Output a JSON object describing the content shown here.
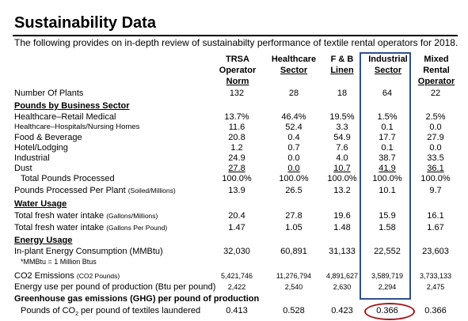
{
  "title": "Sustainability Data",
  "subtitle": "The following provides on in-depth review of sustainabilty performance of textile rental operators for 2018.",
  "columns": [
    {
      "l1": "TRSA",
      "l2": "Operator",
      "l3": "Norm"
    },
    {
      "l1": "",
      "l2": "Healthcare",
      "l3": "Sector"
    },
    {
      "l1": "",
      "l2": "F & B",
      "l3": "Linen"
    },
    {
      "l1": "",
      "l2": "Industrial",
      "l3": "Sector"
    },
    {
      "l1": "Mixed",
      "l2": "Rental",
      "l3": "Operator"
    }
  ],
  "rows": [
    {
      "label": "Number Of Plants",
      "note": "",
      "values": [
        "132",
        "28",
        "18",
        "64",
        "22"
      ]
    },
    {
      "label": "Healthcare–Retail Medical",
      "note": "",
      "values": [
        "13.7%",
        "46.4%",
        "19.5%",
        "1.5%",
        "2.5%"
      ]
    },
    {
      "label": "Healthcare–Hospitals/Nursing Homes",
      "note": "",
      "values": [
        "11.6",
        "52.4",
        "3.3",
        "0.1",
        "0.0"
      ]
    },
    {
      "label": "Food & Beverage",
      "note": "",
      "values": [
        "20.8",
        "0.4",
        "54.9",
        "17.7",
        "27.9"
      ]
    },
    {
      "label": "Hotel/Lodging",
      "note": "",
      "values": [
        "1.2",
        "0.7",
        "7.6",
        "0.1",
        "0.0"
      ]
    },
    {
      "label": "Industrial",
      "note": "",
      "values": [
        "24.9",
        "0.0",
        "4.0",
        "38.7",
        "33.5"
      ]
    },
    {
      "label": "Dust",
      "note": "",
      "values": [
        "27.8",
        "0.0",
        "10.7",
        "41.9",
        "36.1"
      ]
    },
    {
      "label": "Total Pounds Processed",
      "note": "",
      "values": [
        "100.0%",
        "100.0%",
        "100.0%",
        "100.0%",
        "100.0%"
      ]
    },
    {
      "label": "Pounds Processed Per Plant",
      "note": "(Soiled/Millions)",
      "values": [
        "13.9",
        "26.5",
        "13.2",
        "10.1",
        "9.7"
      ]
    },
    {
      "label": "Total fresh water intake",
      "note": "(Gallons/Millions)",
      "values": [
        "20.4",
        "27.8",
        "19.6",
        "15.9",
        "16.1"
      ]
    },
    {
      "label": "Total fresh water intake",
      "note": "(Gallons Per Pound)",
      "values": [
        "1.47",
        "1.05",
        "1.48",
        "1.58",
        "1.67"
      ]
    },
    {
      "label": "In-plant Energy Consumption (MMBtu)",
      "note": "",
      "values": [
        "32,030",
        "60,891",
        "31,133",
        "22,552",
        "23,603"
      ]
    },
    {
      "label": "*MMBtu = 1 Million Btus",
      "note": "",
      "values": []
    },
    {
      "label": "CO2 Emissions",
      "note": "(CO2 Pounds)",
      "values": [
        "5,421,746",
        "11,276,794",
        "4,891,627",
        "3,589,719",
        "3,733,133"
      ]
    },
    {
      "label": "Energy use per pound of production (Btu per pound)",
      "note": "",
      "values": [
        "2,422",
        "2,540",
        "2,630",
        "2,294",
        "2,475"
      ]
    },
    {
      "label": "Pounds of CO",
      "note": "",
      "values": [
        "0.413",
        "0.528",
        "0.423",
        "0.366",
        "0.366"
      ]
    }
  ],
  "sections": {
    "pounds": "Pounds by Business Sector",
    "water": "Water Usage",
    "energy": "Energy Usage",
    "ghg": "Greenhouse gas emissions (GHG) per pound of production"
  },
  "co2_suffix_sub": "2",
  "co2_suffix_rest": " per pound of textiles laundered"
}
